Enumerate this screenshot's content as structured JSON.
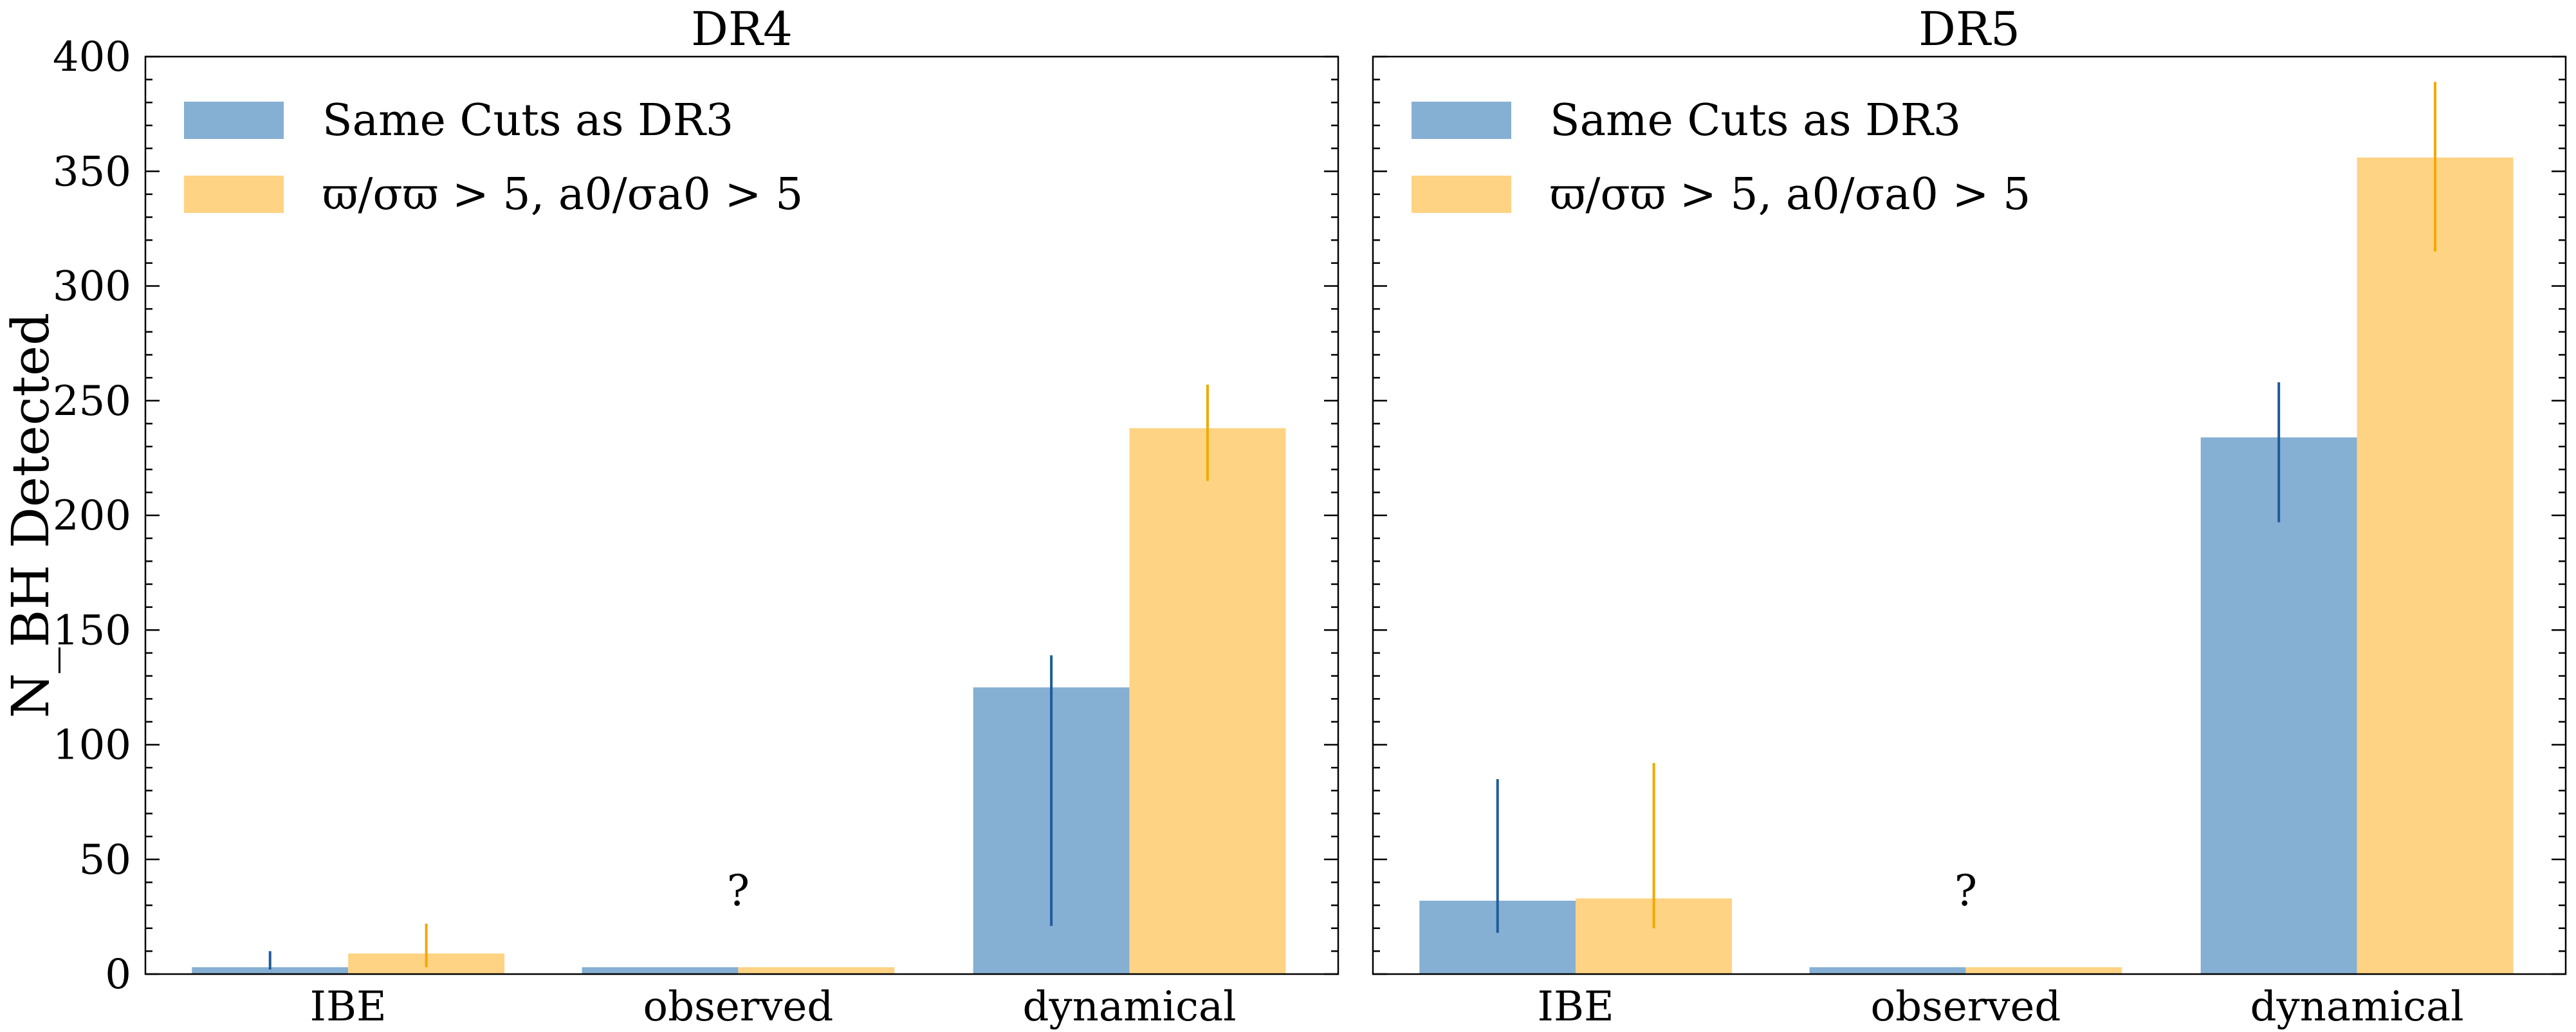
{
  "chart_data": [
    {
      "type": "bar",
      "title": "DR4",
      "ylabel": "N_BH Detected",
      "ylim": [
        0,
        400
      ],
      "yticks": [
        0,
        50,
        100,
        150,
        200,
        250,
        300,
        350,
        400
      ],
      "categories": [
        "IBE",
        "observed",
        "dynamical"
      ],
      "series": [
        {
          "name": "Same Cuts as DR3",
          "color": "#86afd4",
          "errcolor": "#1f5c99",
          "values": [
            3,
            3,
            125
          ],
          "err_low": [
            2,
            null,
            21
          ],
          "err_high": [
            10,
            null,
            139
          ]
        },
        {
          "name": "ϖ/σϖ > 5, a0/σa0 > 5",
          "color": "#fed384",
          "errcolor": "#f2a900",
          "values": [
            9,
            3,
            238
          ],
          "err_low": [
            3,
            null,
            215
          ],
          "err_high": [
            22,
            null,
            257
          ]
        }
      ],
      "annotations": [
        {
          "category": "observed",
          "text": "?",
          "y": 30
        }
      ],
      "legend": "upper-left"
    },
    {
      "type": "bar",
      "title": "DR5",
      "ylim": [
        0,
        400
      ],
      "yticks": [
        0,
        50,
        100,
        150,
        200,
        250,
        300,
        350,
        400
      ],
      "categories": [
        "IBE",
        "observed",
        "dynamical"
      ],
      "series": [
        {
          "name": "Same Cuts as DR3",
          "color": "#86afd4",
          "errcolor": "#1f5c99",
          "values": [
            32,
            3,
            234
          ],
          "err_low": [
            18,
            null,
            197
          ],
          "err_high": [
            85,
            null,
            258
          ]
        },
        {
          "name": "ϖ/σϖ > 5, a0/σa0 > 5",
          "color": "#fed384",
          "errcolor": "#f2a900",
          "values": [
            33,
            3,
            356
          ],
          "err_low": [
            20,
            null,
            315
          ],
          "err_high": [
            92,
            null,
            389
          ]
        }
      ],
      "annotations": [
        {
          "category": "observed",
          "text": "?",
          "y": 30
        }
      ],
      "legend": "upper-left"
    }
  ]
}
